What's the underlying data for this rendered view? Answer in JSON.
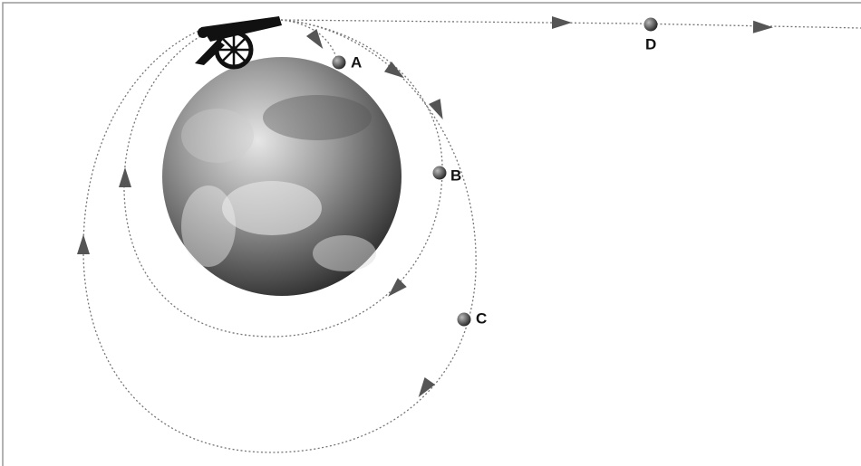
{
  "points": [
    {
      "label": "A"
    },
    {
      "label": "B"
    },
    {
      "label": "C"
    },
    {
      "label": "D"
    }
  ]
}
